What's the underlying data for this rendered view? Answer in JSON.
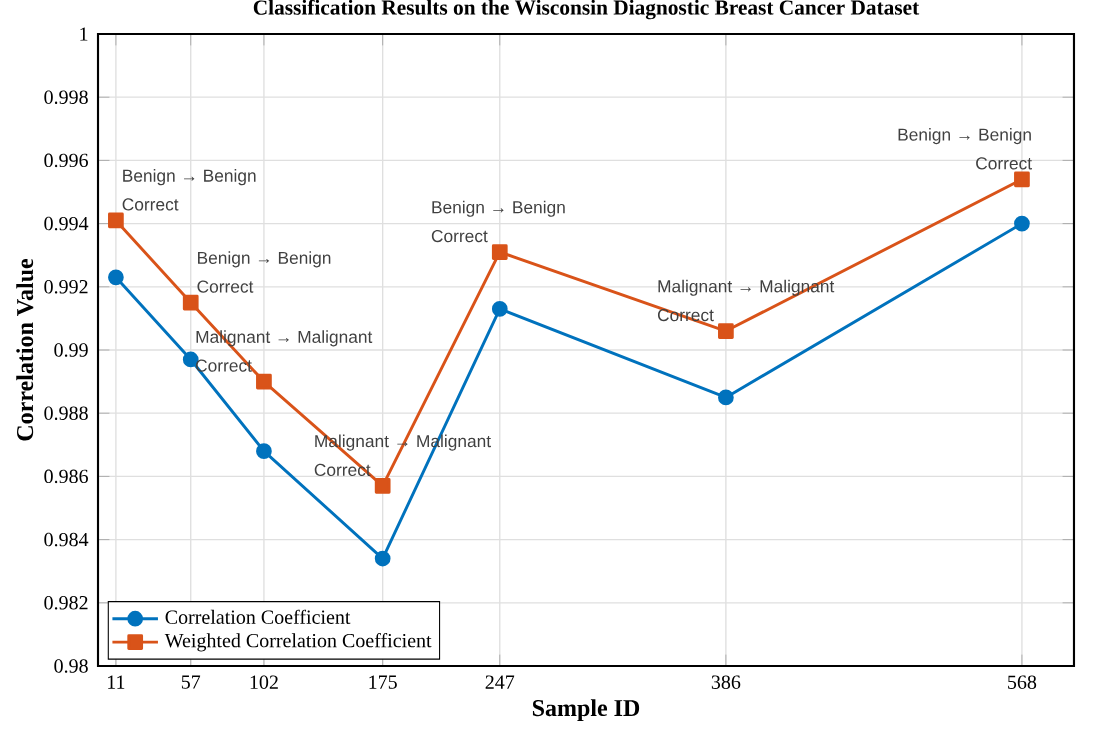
{
  "chart_data": {
    "type": "line",
    "title": "Classification Results on the Wisconsin Diagnostic Breast Cancer Dataset",
    "xlabel": "Sample ID",
    "ylabel": "Correlation Value",
    "x": [
      11,
      57,
      102,
      175,
      247,
      386,
      568
    ],
    "series": [
      {
        "name": "Correlation Coefficient",
        "color": "#0072bd",
        "marker": "circle",
        "values": [
          0.9923,
          0.9897,
          0.9868,
          0.9834,
          0.9913,
          0.9885,
          0.994
        ]
      },
      {
        "name": "Weighted Correlation Coefficient",
        "color": "#d95319",
        "marker": "square",
        "values": [
          0.9941,
          0.9915,
          0.989,
          0.9857,
          0.9931,
          0.9906,
          0.9954
        ]
      }
    ],
    "xlim": [
      0,
      600
    ],
    "xticks": [
      11,
      57,
      102,
      175,
      247,
      386,
      568
    ],
    "ylim": [
      0.98,
      1
    ],
    "yticks": [
      0.98,
      0.982,
      0.984,
      0.986,
      0.988,
      0.99,
      0.992,
      0.994,
      0.996,
      0.998,
      1
    ],
    "grid": true,
    "legend": "bottom left",
    "line_style": "solid",
    "annotations": [
      {
        "text": "Benign → Benign",
        "x": 11,
        "y": 0.9941
      },
      {
        "text": "Correct",
        "x": 11,
        "y": 0.9941
      },
      {
        "text": "Benign → Benign",
        "x": 57,
        "y": 0.9915
      },
      {
        "text": "Correct",
        "x": 57,
        "y": 0.9915
      },
      {
        "text": "Malignant → Malignant",
        "x": 102,
        "y": 0.989
      },
      {
        "text": "Correct",
        "x": 102,
        "y": 0.989
      },
      {
        "text": "Malignant → Malignant",
        "x": 175,
        "y": 0.9857
      },
      {
        "text": "Correct",
        "x": 175,
        "y": 0.9857
      },
      {
        "text": "Benign → Benign",
        "x": 247,
        "y": 0.9931
      },
      {
        "text": "Correct",
        "x": 247,
        "y": 0.9931
      },
      {
        "text": "Malignant → Malignant",
        "x": 386,
        "y": 0.9906
      },
      {
        "text": "Correct",
        "x": 386,
        "y": 0.9906
      },
      {
        "text": "Benign → Benign",
        "x": 568,
        "y": 0.9954
      },
      {
        "text": "Correct",
        "x": 568,
        "y": 0.9954
      }
    ]
  }
}
